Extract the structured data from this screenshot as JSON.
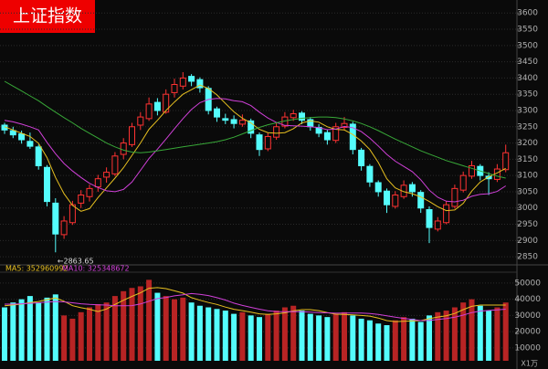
{
  "chart_data": {
    "type": "candlestick",
    "title": "上证指数",
    "up_color": "#ff3232",
    "down_color": "#54fcfc",
    "grid": true,
    "ylim": [
      2825,
      3640
    ],
    "yticks": [
      2850,
      2900,
      2950,
      3000,
      3050,
      3100,
      3150,
      3200,
      3250,
      3300,
      3350,
      3400,
      3450,
      3500,
      3550,
      3600
    ],
    "annotation": "←2863.65",
    "ohlc": [
      [
        3255,
        3262,
        3228,
        3240
      ],
      [
        3238,
        3250,
        3215,
        3225
      ],
      [
        3228,
        3238,
        3198,
        3210
      ],
      [
        3205,
        3232,
        3182,
        3190
      ],
      [
        3188,
        3195,
        3118,
        3130
      ],
      [
        3125,
        3132,
        3005,
        3020
      ],
      [
        3015,
        3030,
        2863.65,
        2920
      ],
      [
        2918,
        2975,
        2905,
        2960
      ],
      [
        2955,
        3022,
        2948,
        3010
      ],
      [
        3015,
        3055,
        3000,
        3040
      ],
      [
        3035,
        3072,
        3020,
        3060
      ],
      [
        3065,
        3102,
        3050,
        3090
      ],
      [
        3095,
        3125,
        3078,
        3110
      ],
      [
        3105,
        3172,
        3098,
        3160
      ],
      [
        3165,
        3215,
        3150,
        3200
      ],
      [
        3195,
        3262,
        3188,
        3250
      ],
      [
        3255,
        3295,
        3240,
        3280
      ],
      [
        3275,
        3340,
        3268,
        3320
      ],
      [
        3325,
        3338,
        3285,
        3300
      ],
      [
        3295,
        3365,
        3290,
        3350
      ],
      [
        3355,
        3398,
        3340,
        3380
      ],
      [
        3375,
        3418,
        3365,
        3400
      ],
      [
        3405,
        3412,
        3375,
        3390
      ],
      [
        3395,
        3402,
        3355,
        3370
      ],
      [
        3368,
        3375,
        3288,
        3300
      ],
      [
        3305,
        3312,
        3265,
        3280
      ],
      [
        3275,
        3290,
        3258,
        3270
      ],
      [
        3272,
        3285,
        3245,
        3260
      ],
      [
        3258,
        3288,
        3250,
        3270
      ],
      [
        3268,
        3275,
        3215,
        3230
      ],
      [
        3225,
        3232,
        3160,
        3180
      ],
      [
        3182,
        3232,
        3175,
        3220
      ],
      [
        3218,
        3262,
        3210,
        3250
      ],
      [
        3252,
        3295,
        3245,
        3280
      ],
      [
        3278,
        3302,
        3268,
        3290
      ],
      [
        3292,
        3298,
        3258,
        3270
      ],
      [
        3272,
        3280,
        3238,
        3250
      ],
      [
        3248,
        3258,
        3218,
        3230
      ],
      [
        3232,
        3240,
        3195,
        3210
      ],
      [
        3208,
        3262,
        3200,
        3250
      ],
      [
        3248,
        3280,
        3240,
        3260
      ],
      [
        3258,
        3265,
        3165,
        3180
      ],
      [
        3178,
        3185,
        3115,
        3130
      ],
      [
        3128,
        3135,
        3065,
        3080
      ],
      [
        3078,
        3085,
        3035,
        3050
      ],
      [
        3052,
        3060,
        2985,
        3010
      ],
      [
        3005,
        3052,
        2998,
        3040
      ],
      [
        3035,
        3085,
        3028,
        3070
      ],
      [
        3072,
        3080,
        3035,
        3050
      ],
      [
        3048,
        3055,
        2985,
        3000
      ],
      [
        2995,
        3005,
        2892,
        2940
      ],
      [
        2935,
        2972,
        2928,
        2960
      ],
      [
        2955,
        3022,
        2950,
        3010
      ],
      [
        3005,
        3072,
        2998,
        3060
      ],
      [
        3055,
        3112,
        3048,
        3100
      ],
      [
        3098,
        3145,
        3090,
        3130
      ],
      [
        3128,
        3135,
        3085,
        3100
      ],
      [
        3098,
        3110,
        3040,
        3090
      ],
      [
        3088,
        3135,
        3080,
        3120
      ],
      [
        3118,
        3195,
        3110,
        3170
      ]
    ],
    "ma_lines": [
      {
        "color": "#e8c020",
        "values": [
          3250,
          3240,
          3230,
          3220,
          3199,
          3155,
          3094,
          3044,
          3008,
          2990,
          2998,
          3032,
          3062,
          3092,
          3124,
          3162,
          3200,
          3242,
          3270,
          3300,
          3326,
          3350,
          3364,
          3378,
          3368,
          3348,
          3322,
          3296,
          3276,
          3262,
          3242,
          3232,
          3230,
          3232,
          3244,
          3262,
          3268,
          3264,
          3250,
          3242,
          3240,
          3226,
          3206,
          3180,
          3140,
          3090,
          3062,
          3050,
          3044,
          3034,
          3020,
          3004,
          2992,
          2994,
          3014,
          3052,
          3080,
          3096,
          3108,
          3122
        ]
      },
      {
        "color": "#d040d8",
        "values": [
          3270,
          3265,
          3258,
          3250,
          3240,
          3202,
          3167,
          3137,
          3114,
          3094,
          3076,
          3063,
          3053,
          3050,
          3057,
          3080,
          3116,
          3152,
          3181,
          3212,
          3244,
          3275,
          3303,
          3324,
          3334,
          3337,
          3336,
          3330,
          3327,
          3315,
          3295,
          3277,
          3263,
          3254,
          3253,
          3252,
          3250,
          3247,
          3241,
          3243,
          3251,
          3247,
          3235,
          3215,
          3191,
          3165,
          3144,
          3128,
          3112,
          3087,
          3055,
          3033,
          3021,
          3019,
          3024,
          3036,
          3042,
          3044,
          3051,
          3068
        ]
      },
      {
        "color": "#38a838",
        "values": [
          3390,
          3375,
          3360,
          3345,
          3330,
          3312,
          3295,
          3278,
          3262,
          3245,
          3230,
          3215,
          3200,
          3188,
          3178,
          3172,
          3170,
          3172,
          3176,
          3180,
          3184,
          3188,
          3192,
          3196,
          3200,
          3204,
          3210,
          3218,
          3228,
          3238,
          3248,
          3256,
          3262,
          3268,
          3272,
          3276,
          3278,
          3280,
          3280,
          3278,
          3274,
          3268,
          3260,
          3250,
          3238,
          3225,
          3212,
          3200,
          3188,
          3176,
          3166,
          3156,
          3146,
          3138,
          3130,
          3122,
          3114,
          3106,
          3098,
          3092
        ]
      }
    ],
    "volume": {
      "unit": "X1万",
      "ylim": [
        2000,
        55600
      ],
      "yticks": [
        10000,
        20000,
        30000,
        40000,
        50000
      ],
      "values": [
        35000,
        38000,
        40000,
        42000,
        38000,
        41000,
        43000,
        30000,
        28000,
        32000,
        35000,
        37000,
        38000,
        42000,
        45000,
        47000,
        48000,
        52000,
        44000,
        42000,
        40000,
        41000,
        38000,
        36000,
        35000,
        34000,
        33000,
        31000,
        32000,
        30000,
        29000,
        31000,
        33000,
        35000,
        36000,
        33000,
        31000,
        30000,
        29000,
        31000,
        32000,
        30000,
        28000,
        27000,
        25000,
        24000,
        27000,
        29000,
        28000,
        26000,
        30000,
        32000,
        33000,
        35000,
        38000,
        40000,
        36000,
        33000,
        35000,
        38000
      ],
      "lines": [
        {
          "legend": "MA5: 352960992",
          "color": "#e8c020",
          "values": [
            36000,
            36500,
            37000,
            38000,
            38600,
            39800,
            40800,
            38800,
            36000,
            34800,
            33800,
            32400,
            34000,
            36800,
            39400,
            41800,
            44000,
            46800,
            47200,
            46600,
            45200,
            43800,
            41000,
            39400,
            38000,
            36800,
            35200,
            33800,
            33000,
            32000,
            31000,
            30600,
            31000,
            31600,
            32800,
            33600,
            33600,
            33000,
            31800,
            30800,
            30600,
            30400,
            30000,
            29600,
            28400,
            26800,
            26200,
            26400,
            26600,
            26800,
            28000,
            29000,
            29800,
            31200,
            33600,
            35600,
            36400,
            36400,
            36400,
            36400
          ]
        },
        {
          "legend": "MA10: 325348672",
          "color": "#d040d8",
          "values": [
            37000,
            37000,
            37200,
            37500,
            37800,
            38200,
            38600,
            38400,
            37800,
            37200,
            36800,
            36600,
            36400,
            36000,
            36000,
            36100,
            37100,
            38800,
            40400,
            41100,
            42100,
            42800,
            43500,
            43100,
            42300,
            41000,
            39500,
            37600,
            36200,
            35000,
            33900,
            32900,
            32400,
            32300,
            32400,
            32300,
            32100,
            31800,
            31600,
            31400,
            31500,
            31500,
            31500,
            31200,
            30600,
            29800,
            28900,
            28200,
            27500,
            26800,
            26900,
            27500,
            28100,
            28900,
            30200,
            31800,
            32700,
            33100,
            33500,
            33900
          ]
        }
      ]
    }
  }
}
